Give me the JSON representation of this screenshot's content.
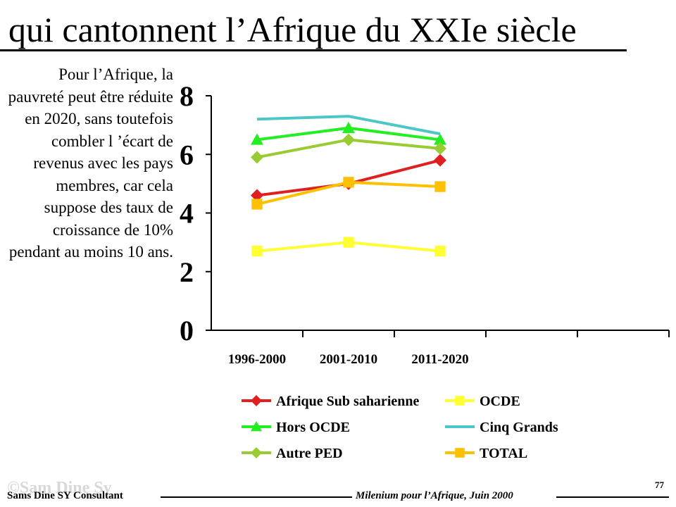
{
  "slide": {
    "title": "qui cantonnent l’Afrique du XXIe siècle",
    "side_text": "Pour l’Afrique, la pauvreté peut être réduite en 2020, sans toutefois combler l ’écart de revenus avec les pays membres, car cela suppose des taux de croissance de 10% pendant au moins 10 ans.",
    "footer_left": "Sams Dine SY Consultant",
    "footer_right": "Milenium pour l’Afrique, Juin 2000",
    "page_number": "77",
    "watermark": "©Sam Dine Sy"
  },
  "chart_data": {
    "type": "line",
    "categories": [
      "1996-2000",
      "2001-2010",
      "2011-2020"
    ],
    "category_slots": 5,
    "ylim": [
      0,
      8
    ],
    "yticks": [
      "0",
      "2",
      "4",
      "6",
      "8"
    ],
    "grid": false,
    "legend_position": "bottom",
    "series": [
      {
        "name": "Afrique Sub saharienne",
        "values": [
          4.6,
          5.0,
          5.8
        ],
        "color": "#e02020",
        "marker": "diamond"
      },
      {
        "name": "OCDE",
        "values": [
          2.7,
          3.0,
          2.7
        ],
        "color": "#ffff33",
        "marker": "square"
      },
      {
        "name": "Hors OCDE",
        "values": [
          6.5,
          6.9,
          6.5
        ],
        "color": "#22ee22",
        "marker": "triangle"
      },
      {
        "name": "Cinq Grands",
        "values": [
          7.2,
          7.3,
          6.7
        ],
        "color": "#4cc7c7",
        "marker": "none"
      },
      {
        "name": "Autre PED",
        "values": [
          5.9,
          6.5,
          6.2
        ],
        "color": "#99cc33",
        "marker": "diamond"
      },
      {
        "name": "TOTAL",
        "values": [
          4.3,
          5.05,
          4.9
        ],
        "color": "#ffc000",
        "marker": "square"
      }
    ]
  }
}
